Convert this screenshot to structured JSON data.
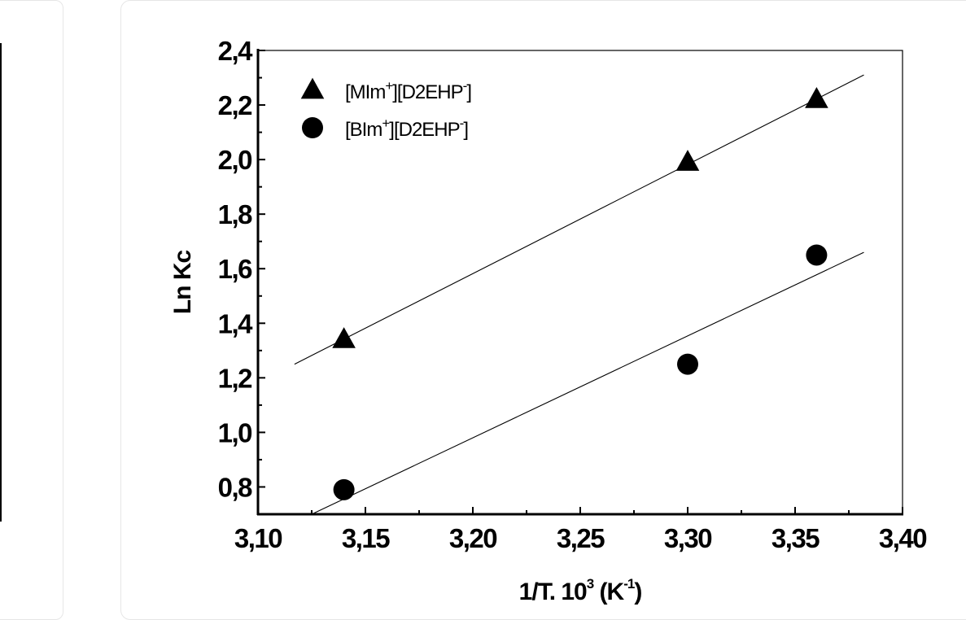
{
  "chart_data": {
    "type": "scatter",
    "xlabel": {
      "text": "1/T. 10",
      "sup": "3",
      "unit_open": " (K",
      "unit_sup": "-1",
      "unit_close": ")"
    },
    "ylabel": "Ln Kc",
    "xlim": [
      3.1,
      3.4
    ],
    "ylim": [
      0.7,
      2.4
    ],
    "x_ticks": [
      3.1,
      3.15,
      3.2,
      3.25,
      3.3,
      3.35,
      3.4
    ],
    "x_tick_labels": [
      "3,10",
      "3,15",
      "3,20",
      "3,25",
      "3,30",
      "3,35",
      "3,40"
    ],
    "y_ticks": [
      0.8,
      1.0,
      1.2,
      1.4,
      1.6,
      1.8,
      2.0,
      2.2,
      2.4
    ],
    "y_tick_labels": [
      "0,8",
      "1,0",
      "1,2",
      "1,4",
      "1,6",
      "1,8",
      "2,0",
      "2,2",
      "2,4"
    ],
    "grid": false,
    "legend_position": "top-left",
    "series": [
      {
        "name": "[MIm+][D2EHP-]",
        "label_parts": [
          "[MIm",
          "+",
          "][D2EHP",
          "-",
          "]"
        ],
        "marker": "triangle",
        "x": [
          3.14,
          3.3,
          3.36
        ],
        "y": [
          1.34,
          1.99,
          2.22
        ],
        "fit": {
          "x": [
            3.117,
            3.382
          ],
          "y": [
            1.25,
            2.31
          ]
        }
      },
      {
        "name": "[BIm+][D2EHP-]",
        "label_parts": [
          "[BIm",
          "+",
          "][D2EHP",
          "-",
          "]"
        ],
        "marker": "circle",
        "x": [
          3.14,
          3.3,
          3.36
        ],
        "y": [
          0.79,
          1.25,
          1.65
        ],
        "fit": {
          "x": [
            3.125,
            3.382
          ],
          "y": [
            0.7,
            1.66
          ]
        }
      }
    ],
    "color": "#000000"
  }
}
